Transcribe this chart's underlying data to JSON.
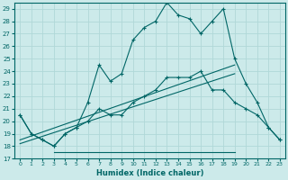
{
  "xlabel": "Humidex (Indice chaleur)",
  "bg_color": "#cceaea",
  "line_color": "#006666",
  "grid_color": "#b0d8d8",
  "xlim": [
    -0.5,
    23.5
  ],
  "ylim": [
    17,
    29.5
  ],
  "yticks": [
    17,
    18,
    19,
    20,
    21,
    22,
    23,
    24,
    25,
    26,
    27,
    28,
    29
  ],
  "xticks": [
    0,
    1,
    2,
    3,
    4,
    5,
    6,
    7,
    8,
    9,
    10,
    11,
    12,
    13,
    14,
    15,
    16,
    17,
    18,
    19,
    20,
    21,
    22,
    23
  ],
  "line1_x": [
    0,
    1,
    2,
    3,
    4,
    5,
    6,
    7,
    8,
    9,
    10,
    11,
    12,
    13,
    14,
    15,
    16,
    17,
    18,
    19,
    20,
    21,
    22,
    23
  ],
  "line1_y": [
    20.5,
    19.0,
    18.5,
    18.0,
    19.0,
    19.5,
    21.5,
    24.5,
    23.2,
    23.8,
    26.5,
    27.5,
    28.0,
    29.5,
    28.5,
    28.2,
    27.0,
    28.0,
    29.0,
    25.0,
    23.0,
    21.5,
    19.5,
    18.5
  ],
  "line2_x": [
    0,
    1,
    2,
    3,
    4,
    5,
    6,
    7,
    8,
    9,
    10,
    11,
    12,
    13,
    14,
    15,
    16,
    17,
    18,
    19,
    20,
    21,
    22,
    23
  ],
  "line2_y": [
    20.5,
    19.0,
    18.5,
    18.0,
    19.0,
    19.5,
    20.0,
    21.0,
    20.5,
    20.5,
    21.5,
    22.0,
    22.5,
    23.5,
    23.5,
    23.5,
    24.0,
    22.5,
    22.5,
    21.5,
    21.0,
    20.5,
    19.5,
    18.5
  ],
  "line3_x": [
    0,
    19
  ],
  "line3_y": [
    18.5,
    24.5
  ],
  "line4_x": [
    0,
    19
  ],
  "line4_y": [
    18.2,
    23.8
  ],
  "line5_x": [
    3,
    19
  ],
  "line5_y": [
    17.5,
    17.5
  ]
}
